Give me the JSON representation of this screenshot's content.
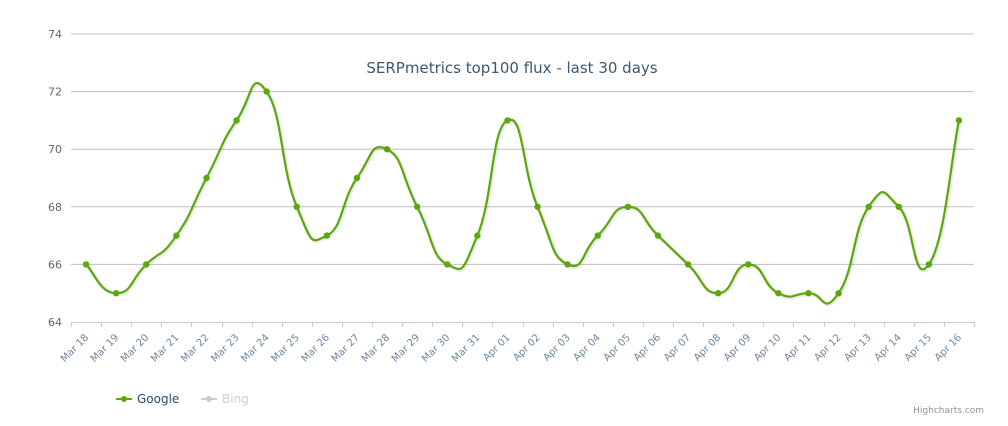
{
  "chart_data": {
    "type": "line",
    "title": "SERPmetrics top100 flux - last 30 days",
    "xlabel": "",
    "ylabel": "",
    "ylim": [
      64,
      74
    ],
    "yticks": [
      64,
      66,
      68,
      70,
      72,
      74
    ],
    "grid": true,
    "smooth": true,
    "legend_position": "bottom-left",
    "categories": [
      "Mar 18",
      "Mar 19",
      "Mar 20",
      "Mar 21",
      "Mar 22",
      "Mar 23",
      "Mar 24",
      "Mar 25",
      "Mar 26",
      "Mar 27",
      "Mar 28",
      "Mar 29",
      "Mar 30",
      "Mar 31",
      "Apr 01",
      "Apr 02",
      "Apr 03",
      "Apr 04",
      "Apr 05",
      "Apr 06",
      "Apr 07",
      "Apr 08",
      "Apr 09",
      "Apr 10",
      "Apr 11",
      "Apr 12",
      "Apr 13",
      "Apr 14",
      "Apr 15",
      "Apr 16"
    ],
    "series": [
      {
        "name": "Google",
        "color": "#5ba80d",
        "visible": true,
        "values": [
          66,
          65,
          66,
          67,
          69,
          71,
          72,
          68,
          67,
          69,
          70,
          68,
          66,
          67,
          71,
          68,
          66,
          67,
          68,
          67,
          66,
          65,
          66,
          65,
          65,
          65,
          68,
          68,
          66,
          71
        ]
      },
      {
        "name": "Bing",
        "color": "#cccccc",
        "visible": false,
        "values": []
      }
    ]
  },
  "legend": {
    "items": [
      {
        "label": "Google",
        "color": "#5ba80d",
        "text_color": "#274b6d"
      },
      {
        "label": "Bing",
        "color": "#cccccc",
        "text_color": "#cccccc"
      }
    ]
  },
  "credits": "Highcharts.com"
}
